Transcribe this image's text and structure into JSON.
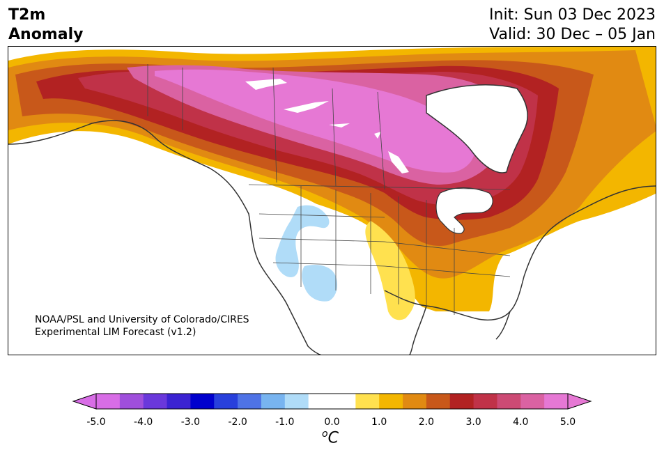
{
  "title": {
    "line1": "T2m",
    "line2": "Anomaly"
  },
  "run": {
    "init": "Init: Sun 03 Dec 2023",
    "valid": "Valid: 30 Dec – 05 Jan"
  },
  "credit": {
    "line1": "NOAA/PSL and University of Colorado/CIRES",
    "line2": "Experimental LIM Forecast (v1.2)"
  },
  "colorbar": {
    "unit_symbol": "C",
    "unit_prefix": "o",
    "ticks": [
      "-5.0",
      "-4.0",
      "-3.0",
      "-2.0",
      "-1.0",
      "0.0",
      "1.0",
      "2.0",
      "3.0",
      "4.0",
      "5.0"
    ],
    "colors": [
      "#d86de6",
      "#9f4fdc",
      "#6a38db",
      "#3b23d2",
      "#0000cd",
      "#2840dc",
      "#4f73e6",
      "#78b4f0",
      "#b0dcf8",
      "#ffffff",
      "#ffffff",
      "#ffe14f",
      "#f3b600",
      "#e18a12",
      "#c8581a",
      "#b22222",
      "#c03248",
      "#cc4a74",
      "#da62a2",
      "#e678d4"
    ],
    "min_color": "#d86de6",
    "max_color": "#e678d4"
  },
  "map": {
    "region": "North America",
    "legend_min": -5.0,
    "legend_max": 5.0
  }
}
